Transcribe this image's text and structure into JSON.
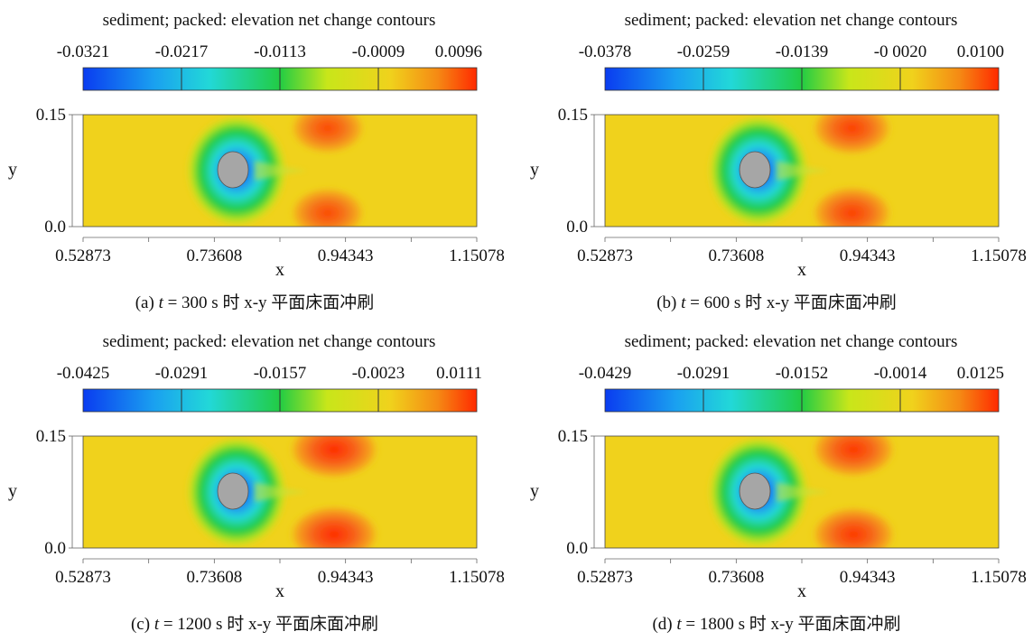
{
  "panels": [
    {
      "title": "sediment; packed: elevation net change contours",
      "colorbar_ticks": [
        "-0.0321",
        "-0.0217",
        "-0.0113",
        "-0.0009",
        "0.0096"
      ],
      "y_label": "y",
      "y_ticks": [
        "0.15",
        "0.0"
      ],
      "x_label": "x",
      "x_ticks": [
        "0.52873",
        "0.73608",
        "0.94343",
        "1.15078"
      ],
      "caption_prefix": "(a) ",
      "caption_var": "t",
      "caption_rest": " = 300 s 时 x-y 平面床面冲刷",
      "deposition_level": 0.6
    },
    {
      "title": "sediment; packed: elevation net change contours",
      "colorbar_ticks": [
        "-0.0378",
        "-0.0259",
        "-0.0139",
        "-0 0020",
        "0.0100"
      ],
      "y_label": "y",
      "y_ticks": [
        "0.15",
        "0.0"
      ],
      "x_label": "x",
      "x_ticks": [
        "0.52873",
        "0.73608",
        "0.94343",
        "1.15078"
      ],
      "caption_prefix": "(b) ",
      "caption_var": "t",
      "caption_rest": " = 600 s 时 x-y 平面床面冲刷",
      "deposition_level": 0.75
    },
    {
      "title": "sediment; packed: elevation net change contours",
      "colorbar_ticks": [
        "-0.0425",
        "-0.0291",
        "-0.0157",
        "-0.0023",
        "0.0111"
      ],
      "y_label": "y",
      "y_ticks": [
        "0.15",
        "0.0"
      ],
      "x_label": "x",
      "x_ticks": [
        "0.52873",
        "0.73608",
        "0.94343",
        "1.15078"
      ],
      "caption_prefix": "(c) ",
      "caption_var": "t",
      "caption_rest": " = 1200 s 时 x-y 平面床面冲刷",
      "deposition_level": 1.0
    },
    {
      "title": "sediment; packed: elevation net change contours",
      "colorbar_ticks": [
        "-0.0429",
        "-0.0291",
        "-0.0152",
        "-0.0014",
        "0.0125"
      ],
      "y_label": "y",
      "y_ticks": [
        "0.15",
        "0.0"
      ],
      "x_label": "x",
      "x_ticks": [
        "0.52873",
        "0.73608",
        "0.94343",
        "1.15078"
      ],
      "caption_prefix": "(d) ",
      "caption_var": "t",
      "caption_rest": " = 1800 s 时 x-y 平面床面冲刷",
      "deposition_level": 0.85
    }
  ],
  "colors": {
    "background_field": "#f0d21c",
    "pier": "#a6a6a6",
    "deep_scour": "#0a3cf0",
    "deposition": "#ff2a00"
  }
}
